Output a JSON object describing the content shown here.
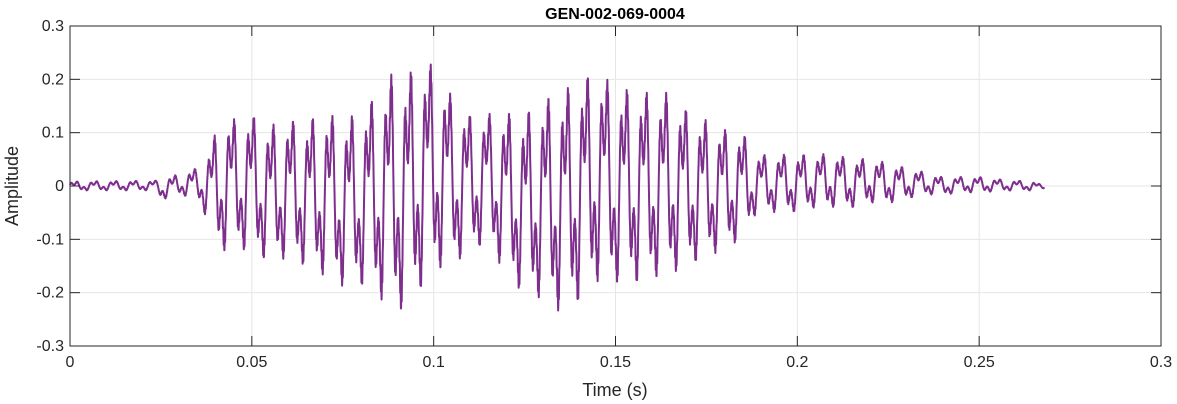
{
  "chart_data": {
    "type": "line",
    "title": "GEN-002-069-0004",
    "xlabel": "Time (s)",
    "ylabel": "Amplitude",
    "xlim": [
      0,
      0.3
    ],
    "ylim": [
      -0.3,
      0.3
    ],
    "x_ticks": [
      0,
      0.05,
      0.1,
      0.15,
      0.2,
      0.25,
      0.3
    ],
    "x_tick_labels": [
      "0",
      "0.05",
      "0.1",
      "0.15",
      "0.2",
      "0.25",
      "0.3"
    ],
    "y_ticks": [
      -0.3,
      -0.2,
      -0.1,
      0,
      0.1,
      0.2,
      0.3
    ],
    "y_tick_labels": [
      "-0.3",
      "-0.2",
      "-0.1",
      "0",
      "0.1",
      "0.2",
      "0.3"
    ],
    "grid": true,
    "line_color": "#7E2F8E",
    "series": [
      {
        "name": "",
        "x": [
          0,
          0.024,
          0.025,
          0.03,
          0.035,
          0.038,
          0.04,
          0.042,
          0.045,
          0.05,
          0.055,
          0.06,
          0.065,
          0.07,
          0.075,
          0.08,
          0.085,
          0.09,
          0.092,
          0.095,
          0.1,
          0.105,
          0.11,
          0.115,
          0.12,
          0.125,
          0.13,
          0.135,
          0.14,
          0.145,
          0.15,
          0.155,
          0.16,
          0.165,
          0.17,
          0.175,
          0.18,
          0.185,
          0.188,
          0.19,
          0.195,
          0.2,
          0.205,
          0.21,
          0.215,
          0.22,
          0.225,
          0.23,
          0.235,
          0.24,
          0.245,
          0.25,
          0.255,
          0.26,
          0.265,
          0.268
        ],
        "envelope_upper": [
          0.01,
          0.012,
          0.02,
          0.025,
          0.04,
          0.08,
          0.12,
          0.16,
          0.15,
          0.16,
          0.14,
          0.15,
          0.15,
          0.17,
          0.16,
          0.17,
          0.22,
          0.27,
          0.25,
          0.27,
          0.27,
          0.2,
          0.16,
          0.16,
          0.17,
          0.17,
          0.2,
          0.22,
          0.24,
          0.26,
          0.22,
          0.22,
          0.21,
          0.21,
          0.17,
          0.15,
          0.13,
          0.12,
          0.08,
          0.07,
          0.07,
          0.07,
          0.07,
          0.07,
          0.06,
          0.06,
          0.05,
          0.04,
          0.03,
          0.02,
          0.02,
          0.02,
          0.015,
          0.012,
          0.01,
          0.0
        ],
        "envelope_lower": [
          -0.01,
          -0.01,
          -0.03,
          -0.02,
          -0.03,
          -0.08,
          -0.13,
          -0.15,
          -0.14,
          -0.15,
          -0.17,
          -0.16,
          -0.18,
          -0.2,
          -0.22,
          -0.22,
          -0.25,
          -0.28,
          -0.28,
          -0.25,
          -0.2,
          -0.18,
          -0.15,
          -0.13,
          -0.2,
          -0.24,
          -0.25,
          -0.28,
          -0.26,
          -0.22,
          -0.22,
          -0.22,
          -0.21,
          -0.2,
          -0.18,
          -0.16,
          -0.14,
          -0.12,
          -0.07,
          -0.06,
          -0.06,
          -0.06,
          -0.05,
          -0.05,
          -0.05,
          -0.04,
          -0.04,
          -0.03,
          -0.02,
          -0.02,
          -0.015,
          -0.015,
          -0.012,
          -0.01,
          -0.01,
          -0.005
        ],
        "cycle_period_s": 0.0054
      }
    ]
  }
}
